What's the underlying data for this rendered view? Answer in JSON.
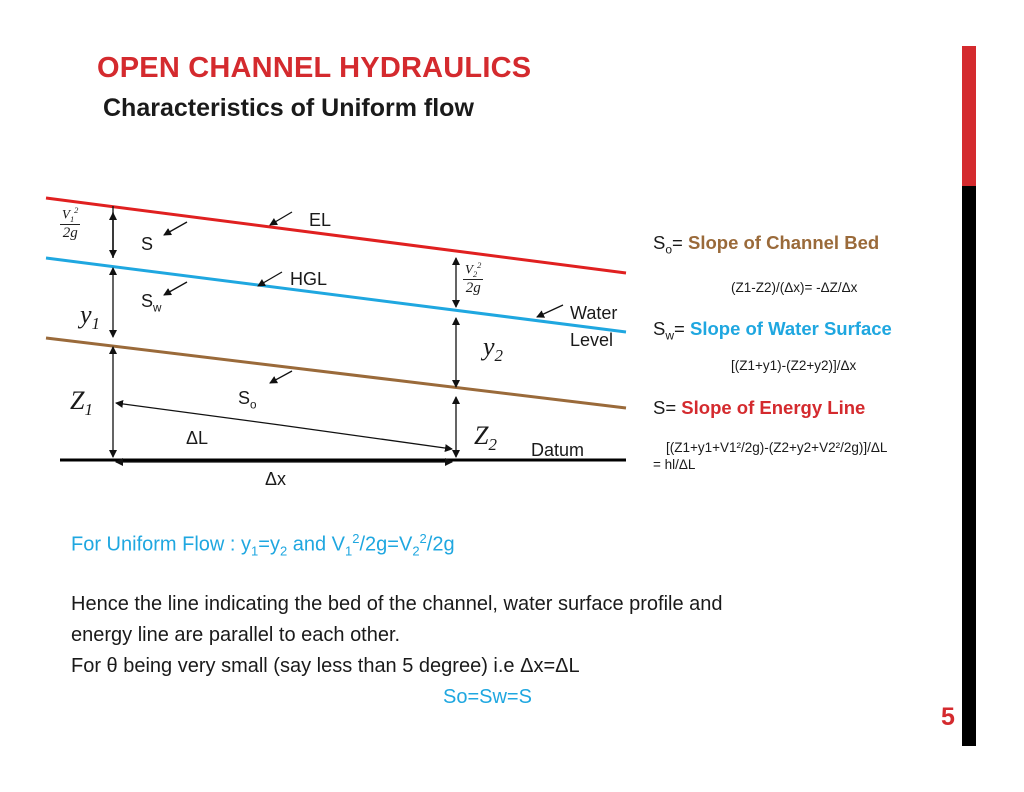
{
  "slide": {
    "title": "OPEN CHANNEL HYDRAULICS",
    "subtitle": "Characteristics of Uniform flow",
    "page_number": "5",
    "colors": {
      "accent_red": "#d42a2e",
      "blue": "#1fa7e0",
      "brown": "#9a6a3a",
      "black": "#000000"
    }
  },
  "diagram": {
    "line_labels": {
      "el": "EL",
      "hgl": "HGL",
      "water": "Water",
      "level": "Level",
      "datum": "Datum"
    },
    "slope_labels": {
      "s": "S",
      "sw_main": "S",
      "sw_sub": "w",
      "so_main": "S",
      "so_sub": "o"
    },
    "lengths": {
      "delta_l": "ΔL",
      "delta_x": "Δx"
    },
    "section1": {
      "v_num": "V",
      "v_sub": "1",
      "v_sup": "2",
      "den": "2g",
      "y_main": "y",
      "y_sub": "1",
      "z_main": "Z",
      "z_sub": "1"
    },
    "section2": {
      "v_num": "V",
      "v_sub": "2",
      "v_sup": "2",
      "den": "2g",
      "y_main": "y",
      "y_sub": "2",
      "z_main": "Z",
      "z_sub": "2"
    }
  },
  "definitions": {
    "so": {
      "symbol": "S",
      "sub": "o",
      "eq": "= ",
      "text": "Slope of Channel Bed",
      "formula": "(Z1-Z2)/(Δx)= -ΔZ/Δx"
    },
    "sw": {
      "symbol": "S",
      "sub": "w",
      "eq": "= ",
      "text": "Slope of Water Surface",
      "formula": "[(Z1+y1)-(Z2+y2)]/Δx"
    },
    "s": {
      "symbol": "S",
      "eq": "= ",
      "text": "Slope of Energy Line",
      "formula_line1": "[(Z1+y1+V1²/2g)-(Z2+y2+V2²/2g)]/ΔL",
      "formula_line2": "= hl/ΔL"
    }
  },
  "body": {
    "uniform_prefix": "For Uniform Flow : ",
    "uniform_y": "y",
    "uniform_sub1": "1",
    "uniform_eq": "=",
    "uniform_sub2": "2",
    "uniform_and": " and V",
    "uniform_over": "/2g=V",
    "uniform_end": "/2g",
    "sup2": "2",
    "para_line1": "Hence the line indicating the bed of the channel, water surface profile and",
    "para_line2": "energy line are parallel to each other.",
    "para_line3": "For θ being very small (say less than 5 degree) i.e Δx=ΔL",
    "conclusion": "So=Sw=S"
  }
}
